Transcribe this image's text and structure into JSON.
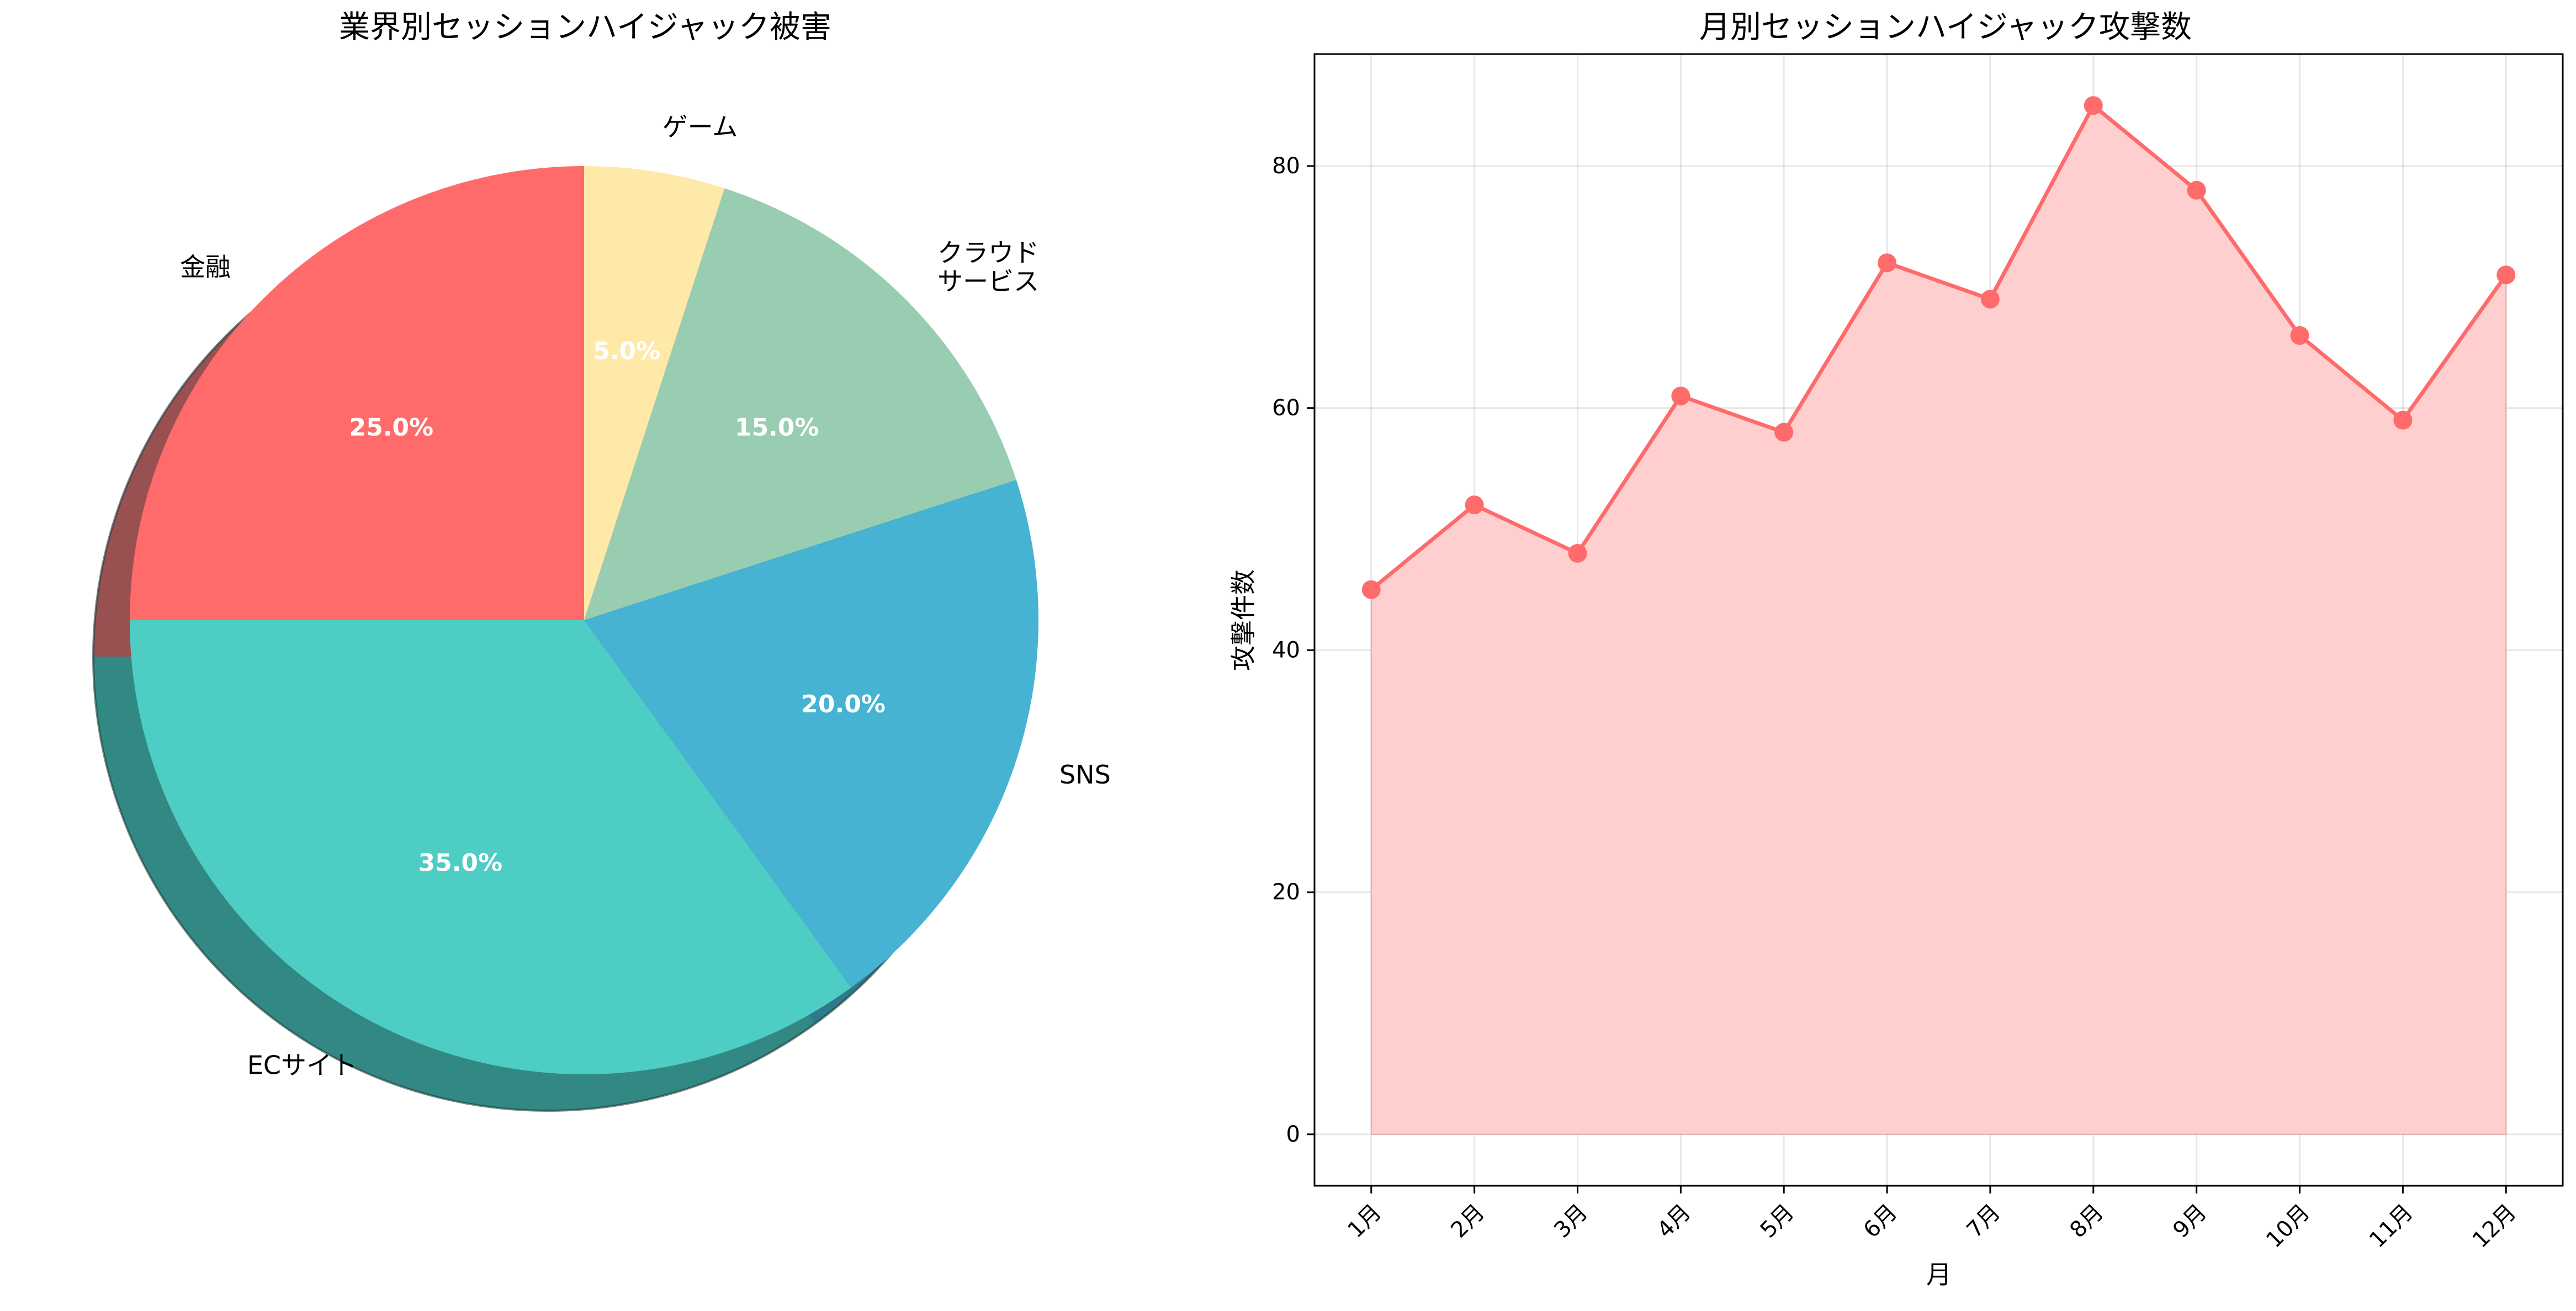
{
  "chart_data": [
    {
      "type": "pie",
      "title": "業界別セッションハイジャック被害",
      "labels": [
        "金融",
        "ECサイト",
        "SNS",
        "クラウド\nサービス",
        "ゲーム"
      ],
      "values": [
        25,
        35,
        20,
        15,
        5
      ],
      "percent_labels": [
        "25.0%",
        "35.0%",
        "20.0%",
        "15.0%",
        "5.0%"
      ],
      "colors": [
        "#ff6b6b",
        "#4ecdc4",
        "#45b3d1",
        "#98cdb1",
        "#ffe9a8"
      ],
      "start_angle_deg": 90,
      "direction": "counterclockwise",
      "shadow": true
    },
    {
      "type": "area",
      "title": "月別セッションハイジャック攻撃数",
      "categories": [
        "1月",
        "2月",
        "3月",
        "4月",
        "5月",
        "6月",
        "7月",
        "8月",
        "9月",
        "10月",
        "11月",
        "12月"
      ],
      "values": [
        45,
        52,
        48,
        61,
        58,
        72,
        69,
        85,
        78,
        66,
        59,
        71
      ],
      "xlabel": "月",
      "ylabel": "攻撃件数",
      "ylim": [
        -4.25,
        89.25
      ],
      "yticks": [
        0,
        20,
        40,
        60,
        80
      ],
      "line_color": "#ff6b6b",
      "fill_color": "#ffcfcf",
      "grid": true
    }
  ]
}
